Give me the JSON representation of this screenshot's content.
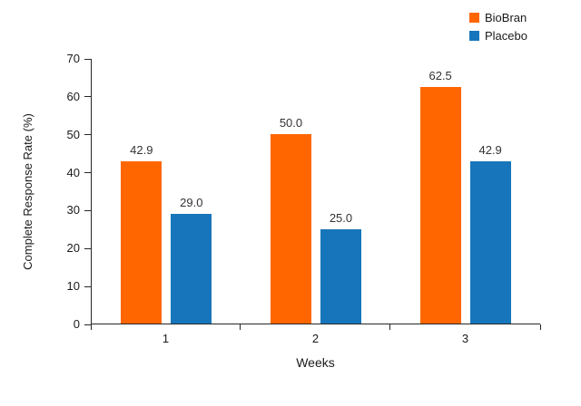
{
  "chart_data": {
    "type": "bar",
    "categories": [
      "1",
      "2",
      "3"
    ],
    "series": [
      {
        "name": "BioBran",
        "color": "#FF6600",
        "values": [
          42.9,
          50.0,
          62.5
        ]
      },
      {
        "name": "Placebo",
        "color": "#1776BB",
        "values": [
          29.0,
          25.0,
          42.9
        ]
      }
    ],
    "title": "",
    "xlabel": "Weeks",
    "ylabel": "Complete Response Rate (%)",
    "ylim": [
      0,
      70
    ],
    "ytick_step": 10,
    "grid": false,
    "legend_position": "top-right",
    "value_label_decimals": 1
  },
  "legend": {
    "items": [
      {
        "label": "BioBran",
        "color": "#FF6600"
      },
      {
        "label": "Placebo",
        "color": "#1776BB"
      }
    ]
  }
}
